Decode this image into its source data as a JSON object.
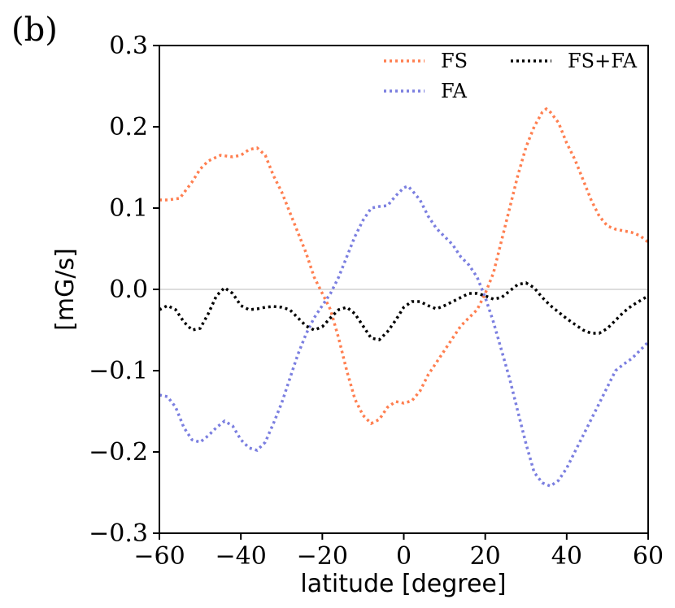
{
  "panel_label": "(b)",
  "chart_data": {
    "type": "line",
    "xlabel": "latitude [degree]",
    "ylabel": "[mG/s]",
    "xlim": [
      -60,
      60
    ],
    "ylim": [
      -0.3,
      0.3
    ],
    "xticks": [
      -60,
      -40,
      -20,
      0,
      20,
      40,
      60
    ],
    "xtick_labels": [
      "−60",
      "−40",
      "−20",
      "0",
      "20",
      "40",
      "60"
    ],
    "yticks": [
      -0.3,
      -0.2,
      -0.1,
      0.0,
      0.1,
      0.2,
      0.3
    ],
    "ytick_labels": [
      "−0.3",
      "−0.2",
      "−0.1",
      "0.0",
      "0.1",
      "0.2",
      "0.3"
    ],
    "zero_line": true,
    "grid": false,
    "legend_position": "top-right",
    "series": [
      {
        "name": "FS",
        "color": "#ff7f50",
        "x": [
          -60,
          -58,
          -55,
          -52,
          -50,
          -48,
          -45,
          -42,
          -40,
          -38,
          -36,
          -34,
          -32,
          -30,
          -28,
          -26,
          -24,
          -22,
          -20,
          -18,
          -16,
          -14,
          -12,
          -10,
          -8,
          -6,
          -4,
          -2,
          0,
          2,
          4,
          6,
          8,
          10,
          12,
          14,
          16,
          18,
          20,
          22,
          24,
          26,
          28,
          30,
          32,
          34,
          35,
          36,
          38,
          40,
          42,
          44,
          46,
          48,
          50,
          52,
          54,
          56,
          58,
          60
        ],
        "values": [
          0.11,
          0.11,
          0.112,
          0.132,
          0.148,
          0.158,
          0.165,
          0.163,
          0.165,
          0.172,
          0.174,
          0.165,
          0.14,
          0.12,
          0.095,
          0.07,
          0.045,
          0.015,
          -0.005,
          -0.025,
          -0.06,
          -0.1,
          -0.135,
          -0.155,
          -0.165,
          -0.16,
          -0.145,
          -0.138,
          -0.14,
          -0.137,
          -0.125,
          -0.105,
          -0.09,
          -0.075,
          -0.06,
          -0.045,
          -0.035,
          -0.025,
          -0.005,
          0.02,
          0.06,
          0.1,
          0.14,
          0.175,
          0.2,
          0.218,
          0.222,
          0.218,
          0.205,
          0.18,
          0.16,
          0.135,
          0.11,
          0.09,
          0.078,
          0.074,
          0.072,
          0.07,
          0.066,
          0.058
        ]
      },
      {
        "name": "FA",
        "color": "#7b7fe0",
        "x": [
          -60,
          -58,
          -56,
          -54,
          -52,
          -50,
          -48,
          -46,
          -44,
          -42,
          -40,
          -38,
          -36,
          -34,
          -32,
          -30,
          -28,
          -26,
          -24,
          -22,
          -20,
          -18,
          -16,
          -14,
          -12,
          -10,
          -8,
          -6,
          -4,
          -2,
          0,
          1,
          2,
          4,
          6,
          8,
          10,
          12,
          14,
          16,
          18,
          20,
          22,
          24,
          26,
          28,
          30,
          32,
          34,
          36,
          38,
          40,
          42,
          44,
          46,
          48,
          50,
          52,
          54,
          56,
          58,
          60
        ],
        "values": [
          -0.13,
          -0.132,
          -0.145,
          -0.17,
          -0.185,
          -0.188,
          -0.18,
          -0.17,
          -0.162,
          -0.168,
          -0.185,
          -0.195,
          -0.198,
          -0.188,
          -0.165,
          -0.14,
          -0.11,
          -0.08,
          -0.055,
          -0.035,
          -0.02,
          -0.005,
          0.015,
          0.04,
          0.065,
          0.085,
          0.1,
          0.102,
          0.103,
          0.115,
          0.125,
          0.127,
          0.122,
          0.11,
          0.09,
          0.075,
          0.065,
          0.055,
          0.04,
          0.03,
          0.015,
          -0.01,
          -0.04,
          -0.075,
          -0.11,
          -0.15,
          -0.19,
          -0.225,
          -0.238,
          -0.242,
          -0.235,
          -0.22,
          -0.2,
          -0.18,
          -0.16,
          -0.14,
          -0.12,
          -0.1,
          -0.092,
          -0.085,
          -0.075,
          -0.065
        ]
      },
      {
        "name": "FS+FA",
        "color": "#000000",
        "x": [
          -60,
          -58,
          -56,
          -54,
          -52,
          -50,
          -48,
          -46,
          -44,
          -42,
          -40,
          -38,
          -36,
          -34,
          -32,
          -30,
          -28,
          -26,
          -24,
          -22,
          -20,
          -18,
          -16,
          -14,
          -12,
          -10,
          -8,
          -6,
          -4,
          -2,
          0,
          2,
          4,
          6,
          8,
          10,
          12,
          14,
          16,
          18,
          20,
          22,
          24,
          26,
          28,
          30,
          32,
          34,
          36,
          38,
          40,
          42,
          44,
          46,
          48,
          50,
          52,
          54,
          56,
          58,
          60
        ],
        "values": [
          -0.025,
          -0.02,
          -0.025,
          -0.04,
          -0.05,
          -0.048,
          -0.03,
          -0.008,
          0.002,
          -0.005,
          -0.02,
          -0.025,
          -0.024,
          -0.022,
          -0.021,
          -0.022,
          -0.025,
          -0.035,
          -0.045,
          -0.05,
          -0.046,
          -0.035,
          -0.025,
          -0.022,
          -0.03,
          -0.045,
          -0.06,
          -0.062,
          -0.052,
          -0.038,
          -0.022,
          -0.015,
          -0.015,
          -0.02,
          -0.024,
          -0.02,
          -0.015,
          -0.01,
          -0.005,
          -0.005,
          -0.008,
          -0.012,
          -0.01,
          -0.002,
          0.006,
          0.008,
          0.002,
          -0.01,
          -0.02,
          -0.028,
          -0.036,
          -0.043,
          -0.05,
          -0.054,
          -0.054,
          -0.048,
          -0.038,
          -0.028,
          -0.02,
          -0.014,
          -0.008
        ]
      }
    ]
  }
}
